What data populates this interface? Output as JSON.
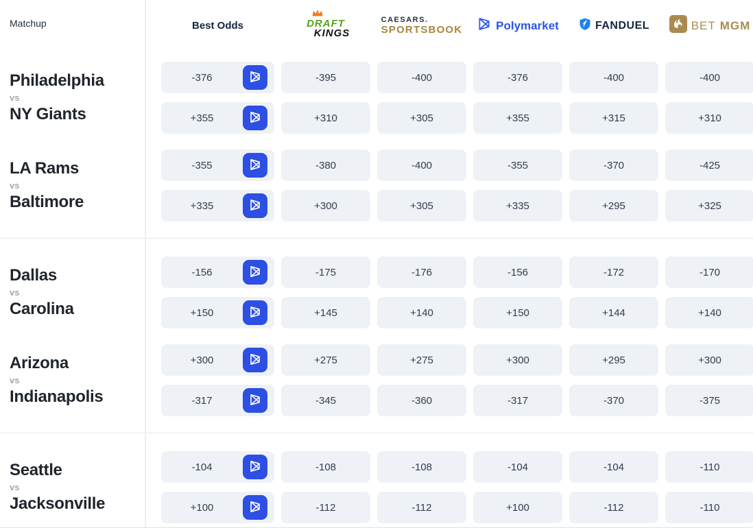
{
  "page": {
    "vs_label": "vs"
  },
  "header": {
    "matchup_label": "Matchup",
    "best_odds_label": "Best Odds",
    "books": {
      "draftkings": {
        "name": "DraftKings",
        "line1": "DRAFT",
        "line2": "KINGS"
      },
      "caesars": {
        "name": "Caesars Sportsbook",
        "line1": "CAESARS.",
        "line2": "SPORTSBOOK"
      },
      "polymarket": {
        "name": "Polymarket",
        "label": "Polymarket"
      },
      "fanduel": {
        "name": "FanDuel",
        "label": "FANDUEL"
      },
      "betmgm": {
        "name": "BetMGM",
        "bet": "BET",
        "mgm": "MGM"
      }
    },
    "book_order": [
      "draftkings",
      "caesars",
      "polymarket",
      "fanduel",
      "betmgm"
    ]
  },
  "sections": [
    {
      "games": [
        {
          "team1": "Philadelphia",
          "team2": "NY Giants",
          "rows": [
            {
              "best": "-376",
              "odds": [
                "-395",
                "-400",
                "-376",
                "-400",
                "-400"
              ]
            },
            {
              "best": "+355",
              "odds": [
                "+310",
                "+305",
                "+355",
                "+315",
                "+310"
              ]
            }
          ]
        },
        {
          "team1": "LA Rams",
          "team2": "Baltimore",
          "rows": [
            {
              "best": "-355",
              "odds": [
                "-380",
                "-400",
                "-355",
                "-370",
                "-425"
              ]
            },
            {
              "best": "+335",
              "odds": [
                "+300",
                "+305",
                "+335",
                "+295",
                "+325"
              ]
            }
          ]
        }
      ]
    },
    {
      "games": [
        {
          "team1": "Dallas",
          "team2": "Carolina",
          "rows": [
            {
              "best": "-156",
              "odds": [
                "-175",
                "-176",
                "-156",
                "-172",
                "-170"
              ]
            },
            {
              "best": "+150",
              "odds": [
                "+145",
                "+140",
                "+150",
                "+144",
                "+140"
              ]
            }
          ]
        },
        {
          "team1": "Arizona",
          "team2": "Indianapolis",
          "rows": [
            {
              "best": "+300",
              "odds": [
                "+275",
                "+275",
                "+300",
                "+295",
                "+300"
              ]
            },
            {
              "best": "-317",
              "odds": [
                "-345",
                "-360",
                "-317",
                "-370",
                "-375"
              ]
            }
          ]
        }
      ]
    },
    {
      "games": [
        {
          "team1": "Seattle",
          "team2": "Jacksonville",
          "rows": [
            {
              "best": "-104",
              "odds": [
                "-108",
                "-108",
                "-104",
                "-104",
                "-110"
              ]
            },
            {
              "best": "+100",
              "odds": [
                "-112",
                "-112",
                "+100",
                "-112",
                "-110"
              ]
            }
          ]
        }
      ]
    }
  ],
  "colors": {
    "accent_blue": "#2d4fe3",
    "polymarket_blue": "#2b55e8",
    "pill_background": "#eef2f7",
    "odds_text": "#333c49",
    "team_text": "#20252d",
    "vs_text": "#a2a9b3",
    "draftkings_green": "#56a117",
    "draftkings_crown_orange": "#f07c1d",
    "caesars_navy": "#232d3e",
    "caesars_gold": "#a8863e",
    "fanduel_navy": "#15233f",
    "fanduel_shield_blue": "#1d81f2",
    "betmgm_gold": "#a98c50",
    "divider": "#e4e7ea"
  }
}
